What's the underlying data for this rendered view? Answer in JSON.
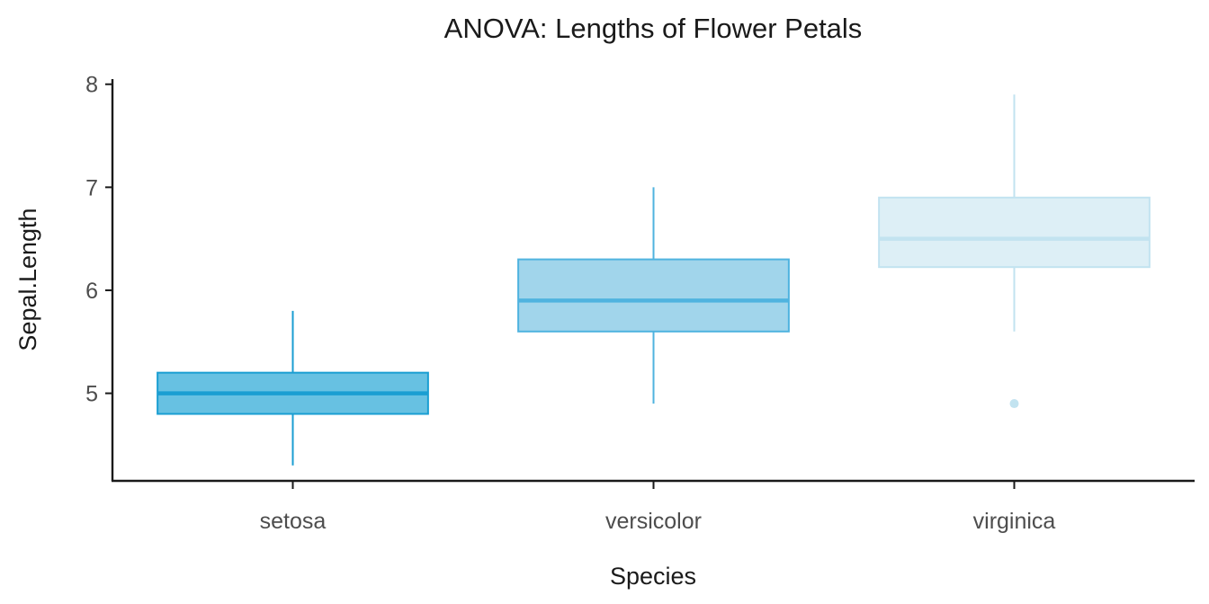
{
  "chart_data": {
    "type": "boxplot",
    "title": "ANOVA: Lengths of Flower Petals",
    "xlabel": "Species",
    "ylabel": "Sepal.Length",
    "categories": [
      "setosa",
      "versicolor",
      "virginica"
    ],
    "ylim": [
      4.15,
      8.05
    ],
    "yticks": [
      5,
      6,
      7,
      8
    ],
    "grid": false,
    "legend": "none",
    "series": [
      {
        "category": "setosa",
        "min": 4.3,
        "q1": 4.8,
        "median": 5.0,
        "q3": 5.2,
        "max": 5.8,
        "outliers": [],
        "fill": "#67c1e2",
        "stroke": "#1a9ed2"
      },
      {
        "category": "versicolor",
        "min": 4.9,
        "q1": 5.6,
        "median": 5.9,
        "q3": 6.3,
        "max": 7.0,
        "outliers": [],
        "fill": "#a1d5eb",
        "stroke": "#4fb3df"
      },
      {
        "category": "virginica",
        "min": 5.6,
        "q1": 6.225,
        "median": 6.5,
        "q3": 6.9,
        "max": 7.9,
        "outliers": [
          4.9
        ],
        "fill": "#ddeff6",
        "stroke": "#c2e3f0"
      }
    ]
  }
}
